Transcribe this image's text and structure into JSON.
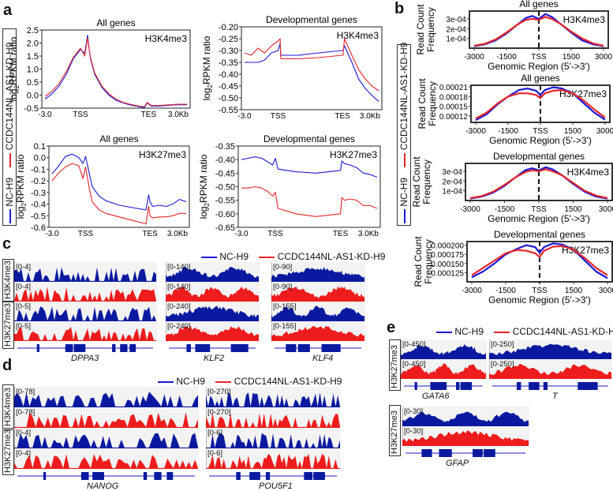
{
  "colors": {
    "nc": "#1a1ad6",
    "kd": "#e8262b",
    "track_nc": "#0a1aa0",
    "track_kd": "#ee1c1c",
    "axis": "#333333"
  },
  "legend": {
    "nc": "NC-H9",
    "kd": "CCDC144NL-AS1-KD-H9"
  },
  "panels": {
    "a": "a",
    "b": "b",
    "c": "c",
    "d": "d",
    "e": "e"
  },
  "chart_data": [
    {
      "id": "a1",
      "type": "line",
      "title": "All genes",
      "annotation": "H3K4me3",
      "ylabel": "log2RPKM ratio",
      "xlabel": "",
      "xticks": [
        "-3.0",
        "TSS",
        "TES",
        "3.0Kb"
      ],
      "ylim": [
        -0.5,
        2.5
      ],
      "yticks": [
        "2.5",
        "2.0",
        "1.5",
        "1.0",
        "0.5",
        "0.0",
        "-0.5"
      ],
      "x": [
        0,
        5,
        10,
        15,
        20,
        25,
        28,
        30,
        32,
        35,
        40,
        45,
        50,
        55,
        60,
        65,
        70,
        72,
        75,
        80,
        85,
        90,
        95,
        100
      ],
      "series": [
        {
          "name": "NC-H9",
          "values": [
            -0.15,
            0.05,
            0.35,
            0.8,
            1.4,
            1.75,
            1.6,
            2.3,
            1.4,
            0.8,
            0.3,
            0.0,
            -0.2,
            -0.3,
            -0.38,
            -0.43,
            -0.48,
            -0.3,
            -0.42,
            -0.42,
            -0.4,
            -0.38,
            -0.37,
            -0.37
          ]
        },
        {
          "name": "CCDC144NL-AS1-KD-H9",
          "values": [
            -0.05,
            0.15,
            0.45,
            0.9,
            1.45,
            1.8,
            1.5,
            2.2,
            1.45,
            0.85,
            0.35,
            0.05,
            -0.15,
            -0.28,
            -0.35,
            -0.41,
            -0.45,
            -0.28,
            -0.4,
            -0.4,
            -0.38,
            -0.36,
            -0.35,
            -0.35
          ]
        }
      ]
    },
    {
      "id": "a2",
      "type": "line",
      "title": "Developmental genes",
      "annotation": "H3K4me3",
      "ylabel": "log2RPKM ratio",
      "xlabel": "",
      "xticks": [
        "-3.0",
        "TSS",
        "TES",
        "3.0Kb"
      ],
      "ylim": [
        -0.55,
        -0.2
      ],
      "yticks": [
        "-0.20",
        "-0.25",
        "-0.30",
        "-0.35",
        "-0.40",
        "-0.45",
        "-0.50",
        "-0.55"
      ],
      "x": [
        0,
        5,
        10,
        15,
        20,
        25,
        26.5,
        27,
        40,
        55,
        73,
        73.5,
        74.5,
        80,
        85,
        90,
        95,
        100
      ],
      "series": [
        {
          "name": "NC-H9",
          "values": [
            -0.35,
            -0.35,
            -0.35,
            -0.34,
            -0.31,
            -0.3,
            -0.27,
            -0.32,
            -0.32,
            -0.31,
            -0.3,
            -0.3,
            -0.28,
            -0.35,
            -0.42,
            -0.46,
            -0.49,
            -0.515
          ]
        },
        {
          "name": "CCDC144NL-AS1-KD-H9",
          "values": [
            -0.31,
            -0.32,
            -0.29,
            -0.31,
            -0.28,
            -0.26,
            -0.25,
            -0.335,
            -0.335,
            -0.33,
            -0.32,
            -0.32,
            -0.25,
            -0.32,
            -0.38,
            -0.42,
            -0.45,
            -0.47
          ]
        }
      ]
    },
    {
      "id": "a3",
      "type": "line",
      "title": "All genes",
      "annotation": "H3K27me3",
      "ylabel": "log2RPKM ratio",
      "xlabel": "",
      "xticks": [
        "-3.0",
        "TSS",
        "TES",
        "3.0Kb"
      ],
      "ylim": [
        -0.6,
        0.1
      ],
      "yticks": [
        "0.1",
        "0.0",
        "-0.1",
        "-0.2",
        "-0.3",
        "-0.4",
        "-0.5",
        "-0.6"
      ],
      "x": [
        0,
        5,
        10,
        15,
        20,
        23,
        25,
        28,
        30,
        35,
        40,
        50,
        60,
        70,
        72,
        73,
        75,
        80,
        85,
        90,
        95,
        100
      ],
      "series": [
        {
          "name": "NC-H9",
          "values": [
            -0.14,
            -0.07,
            0.01,
            0.03,
            0.0,
            -0.05,
            0.01,
            -0.15,
            -0.25,
            -0.33,
            -0.37,
            -0.41,
            -0.43,
            -0.45,
            -0.32,
            -0.38,
            -0.42,
            -0.41,
            -0.42,
            -0.4,
            -0.36,
            -0.38
          ]
        },
        {
          "name": "CCDC144NL-AS1-KD-H9",
          "values": [
            -0.2,
            -0.13,
            -0.08,
            -0.05,
            -0.07,
            -0.18,
            -0.08,
            -0.28,
            -0.38,
            -0.45,
            -0.48,
            -0.51,
            -0.54,
            -0.57,
            -0.42,
            -0.5,
            -0.52,
            -0.51,
            -0.51,
            -0.5,
            -0.48,
            -0.48
          ]
        }
      ]
    },
    {
      "id": "a4",
      "type": "line",
      "title": "Developmental genes",
      "annotation": "H3K27me3",
      "ylabel": "log2RPKM ratio",
      "xlabel": "",
      "xticks": [
        "-3.0",
        "TSS",
        "TES",
        "3.0Kb"
      ],
      "ylim": [
        -0.65,
        -0.35
      ],
      "yticks": [
        "-0.35",
        "-0.40",
        "-0.45",
        "-0.50",
        "-0.55",
        "-0.60",
        "-0.65"
      ],
      "x": [
        0,
        5,
        10,
        15,
        20,
        23,
        25,
        27,
        40,
        55,
        73,
        74,
        76,
        80,
        85,
        90,
        95,
        100
      ],
      "series": [
        {
          "name": "NC-H9",
          "values": [
            -0.4,
            -0.395,
            -0.39,
            -0.395,
            -0.41,
            -0.42,
            -0.395,
            -0.435,
            -0.445,
            -0.45,
            -0.44,
            -0.405,
            -0.415,
            -0.42,
            -0.43,
            -0.45,
            -0.455,
            -0.465
          ]
        },
        {
          "name": "CCDC144NL-AS1-KD-H9",
          "values": [
            -0.505,
            -0.505,
            -0.5,
            -0.505,
            -0.52,
            -0.535,
            -0.52,
            -0.58,
            -0.6,
            -0.61,
            -0.6,
            -0.54,
            -0.55,
            -0.545,
            -0.55,
            -0.57,
            -0.57,
            -0.58
          ]
        }
      ]
    },
    {
      "id": "b1",
      "type": "line",
      "title": "All genes",
      "annotation": "H3K4me3",
      "ylabel": "Read Count Frequency",
      "xlabel": "Genomic Region (5'->3')",
      "xticks": [
        "-3000",
        "-1500",
        "TSS",
        "1500",
        "3000"
      ],
      "xlim": [
        -3000,
        3000
      ],
      "yticks": [
        "3e-04",
        "2e-04",
        "1e-04"
      ],
      "ylim": [
        0,
        0.00038
      ],
      "x": [
        -3000,
        -2500,
        -2000,
        -1500,
        -1000,
        -600,
        -300,
        0,
        300,
        600,
        1000,
        1500,
        2000,
        2500,
        3000
      ],
      "series": [
        {
          "name": "NC-H9",
          "values": [
            2e-05,
            4e-05,
            8e-05,
            0.00015,
            0.00024,
            0.00031,
            0.00033,
            0.0003,
            0.00035,
            0.00032,
            0.00025,
            0.00016,
            8e-05,
            4e-05,
            2e-05
          ]
        },
        {
          "name": "CCDC144NL-AS1-KD-H9",
          "values": [
            2.5e-05,
            4.5e-05,
            9e-05,
            0.00016,
            0.00024,
            0.00029,
            0.0003,
            0.00029,
            0.00032,
            0.0003,
            0.00025,
            0.00017,
            0.0001,
            5e-05,
            2.5e-05
          ]
        }
      ]
    },
    {
      "id": "b2",
      "type": "line",
      "title": "All genes",
      "annotation": "H3K27me3",
      "ylabel": "Read Count Frequency",
      "xlabel": "Genomic Region (5'->3')",
      "xticks": [
        "-3000",
        "-1500",
        "TSS",
        "1500",
        "3000"
      ],
      "xlim": [
        -3000,
        3000
      ],
      "yticks": [
        "0.00021",
        "0.00018",
        "0.00015",
        "0.00012"
      ],
      "ylim": [
        0.0001,
        0.000215
      ],
      "x": [
        -3000,
        -2500,
        -2000,
        -1500,
        -1000,
        -600,
        -200,
        0,
        200,
        600,
        1000,
        1500,
        2000,
        2500,
        3000
      ],
      "series": [
        {
          "name": "NC-H9",
          "values": [
            0.000107,
            0.000125,
            0.000155,
            0.00018,
            0.0002,
            0.000205,
            0.000198,
            0.000185,
            0.0002,
            0.000209,
            0.000205,
            0.00019,
            0.00016,
            0.00013,
            0.000108
          ]
        },
        {
          "name": "CCDC144NL-AS1-KD-H9",
          "values": [
            0.000112,
            0.00013,
            0.000158,
            0.00018,
            0.00019,
            0.00019,
            0.000185,
            0.000175,
            0.00019,
            0.000198,
            0.0002,
            0.00019,
            0.000168,
            0.00014,
            0.000115
          ]
        }
      ]
    },
    {
      "id": "b3",
      "type": "line",
      "title": "Developmental genes",
      "annotation": "H3K4me3",
      "ylabel": "Read Count Frequency",
      "xlabel": "Genomic Region (5'->3')",
      "xticks": [
        "-3000",
        "-1500",
        "TSS",
        "1500",
        "3000"
      ],
      "xlim": [
        -3000,
        3000
      ],
      "yticks": [
        "3e-04",
        "2e-04",
        "1e-04"
      ],
      "ylim": [
        0,
        0.00038
      ],
      "x": [
        -3000,
        -2500,
        -2000,
        -1500,
        -1000,
        -600,
        -300,
        0,
        300,
        600,
        1000,
        1500,
        2000,
        2500,
        3000
      ],
      "series": [
        {
          "name": "NC-H9",
          "values": [
            2e-05,
            4e-05,
            8e-05,
            0.00015,
            0.00024,
            0.00031,
            0.00033,
            0.00031,
            0.00034,
            0.00032,
            0.00026,
            0.00017,
            9e-05,
            4e-05,
            2e-05
          ]
        },
        {
          "name": "CCDC144NL-AS1-KD-H9",
          "values": [
            2.5e-05,
            4.5e-05,
            9e-05,
            0.00016,
            0.00024,
            0.00029,
            0.00031,
            0.0003,
            0.00032,
            0.0003,
            0.00026,
            0.00018,
            0.0001,
            5e-05,
            2.5e-05
          ]
        }
      ]
    },
    {
      "id": "b4",
      "type": "line",
      "title": "Developmental genes",
      "annotation": "H3K27me3",
      "ylabel": "Read Count Frequency",
      "xlabel": "Genomic Region (5'->3')",
      "xticks": [
        "-3000",
        "-1500",
        "TSS",
        "1500",
        "3000"
      ],
      "xlim": [
        -3000,
        3000
      ],
      "yticks": [
        "0.000200",
        "0.000175",
        "0.000150",
        "0.000125"
      ],
      "ylim": [
        0.0001,
        0.00021
      ],
      "x": [
        -3000,
        -2500,
        -2000,
        -1500,
        -1000,
        -600,
        -200,
        0,
        200,
        600,
        1000,
        1500,
        2000,
        2500,
        3000
      ],
      "series": [
        {
          "name": "NC-H9",
          "values": [
            0.000112,
            0.000128,
            0.00015,
            0.000175,
            0.00019,
            0.0002,
            0.000195,
            0.00018,
            0.000195,
            0.000205,
            0.000202,
            0.000188,
            0.000158,
            0.000128,
            0.00011
          ]
        },
        {
          "name": "CCDC144NL-AS1-KD-H9",
          "values": [
            0.000118,
            0.000138,
            0.000158,
            0.000178,
            0.000187,
            0.000185,
            0.000178,
            0.000168,
            0.000185,
            0.000196,
            0.000198,
            0.000188,
            0.000165,
            0.000138,
            0.000118
          ]
        }
      ]
    }
  ],
  "tracks": {
    "c": {
      "marks": [
        "H3K4me3",
        "H3K27me3"
      ],
      "loci": [
        {
          "gene": "DPPA3",
          "ranges": [
            "[0-4]",
            "[0-4]",
            "[0-5]",
            "[0-5]"
          ]
        },
        {
          "gene": "KLF2",
          "ranges": [
            "[0-140]",
            "[0-140]",
            "[0-240]",
            "[0-240]"
          ]
        },
        {
          "gene": "KLF4",
          "ranges": [
            "[0-90]",
            "[0-90]",
            "[0-155]",
            "[0-155]"
          ]
        }
      ]
    },
    "d": {
      "marks": [
        "H3K4me3",
        "H3K27me3"
      ],
      "loci": [
        {
          "gene": "NANOG",
          "ranges": [
            "[0-78]",
            "[0-78]",
            "[0-4]",
            "[0-4]"
          ]
        },
        {
          "gene": "POU5F1",
          "ranges": [
            "[0-270]",
            "[0-270]",
            "[0-6]",
            "[0-6]"
          ]
        }
      ]
    },
    "e": {
      "marks": [
        "H3K27me3"
      ],
      "loci": [
        {
          "gene": "GATA6",
          "ranges": [
            "[0-450]",
            "[0-450]"
          ]
        },
        {
          "gene": "T",
          "ranges": [
            "[0-250]",
            "[0-250]"
          ]
        },
        {
          "gene": "GFAP",
          "ranges": [
            "[0-30]",
            "[0-30]"
          ]
        }
      ]
    }
  }
}
